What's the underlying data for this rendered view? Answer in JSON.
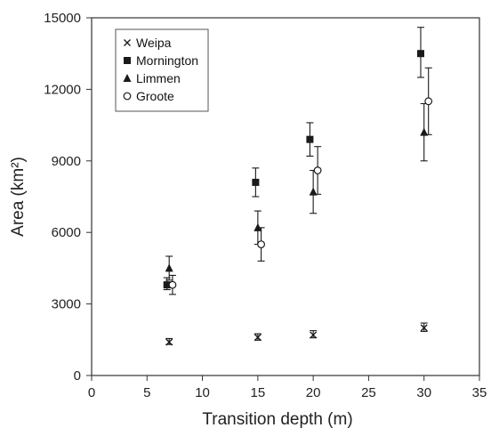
{
  "chart_data": {
    "type": "scatter",
    "title": "",
    "xlabel": "Transition depth (m)",
    "ylabel": "Area (km²)",
    "xlim": [
      0,
      35
    ],
    "ylim": [
      0,
      15000
    ],
    "x_ticks": [
      "0",
      "5",
      "10",
      "15",
      "20",
      "25",
      "30",
      "35"
    ],
    "y_ticks": [
      "0",
      "3000",
      "6000",
      "9000",
      "12000",
      "15000"
    ],
    "grid": false,
    "legend_position": "top-left",
    "series": [
      {
        "name": "Weipa",
        "marker": "x",
        "points": [
          {
            "x": 7,
            "y": 1400,
            "err_low": 1300,
            "err_high": 1550
          },
          {
            "x": 15,
            "y": 1600,
            "err_low": 1480,
            "err_high": 1750
          },
          {
            "x": 20,
            "y": 1700,
            "err_low": 1580,
            "err_high": 1880
          },
          {
            "x": 30,
            "y": 2000,
            "err_low": 1850,
            "err_high": 2200
          }
        ]
      },
      {
        "name": "Mornington",
        "marker": "square",
        "points": [
          {
            "x": 6.8,
            "y": 3800,
            "err_low": 3600,
            "err_high": 4100
          },
          {
            "x": 14.8,
            "y": 8100,
            "err_low": 7500,
            "err_high": 8700
          },
          {
            "x": 19.7,
            "y": 9900,
            "err_low": 9200,
            "err_high": 10600
          },
          {
            "x": 29.7,
            "y": 13500,
            "err_low": 12500,
            "err_high": 14600
          }
        ]
      },
      {
        "name": "Limmen",
        "marker": "triangle",
        "points": [
          {
            "x": 7,
            "y": 4500,
            "err_low": 4000,
            "err_high": 5000
          },
          {
            "x": 15,
            "y": 6200,
            "err_low": 5500,
            "err_high": 6900
          },
          {
            "x": 20,
            "y": 7700,
            "err_low": 6800,
            "err_high": 8600
          },
          {
            "x": 30,
            "y": 10200,
            "err_low": 9000,
            "err_high": 11400
          }
        ]
      },
      {
        "name": "Groote",
        "marker": "circle",
        "points": [
          {
            "x": 7.3,
            "y": 3800,
            "err_low": 3400,
            "err_high": 4200
          },
          {
            "x": 15.3,
            "y": 5500,
            "err_low": 4800,
            "err_high": 6200
          },
          {
            "x": 20.4,
            "y": 8600,
            "err_low": 7600,
            "err_high": 9600
          },
          {
            "x": 30.4,
            "y": 11500,
            "err_low": 10100,
            "err_high": 12900
          }
        ]
      }
    ]
  },
  "colors": {
    "ink": "#1a1a1a",
    "frame": "#333333",
    "background": "#ffffff"
  }
}
